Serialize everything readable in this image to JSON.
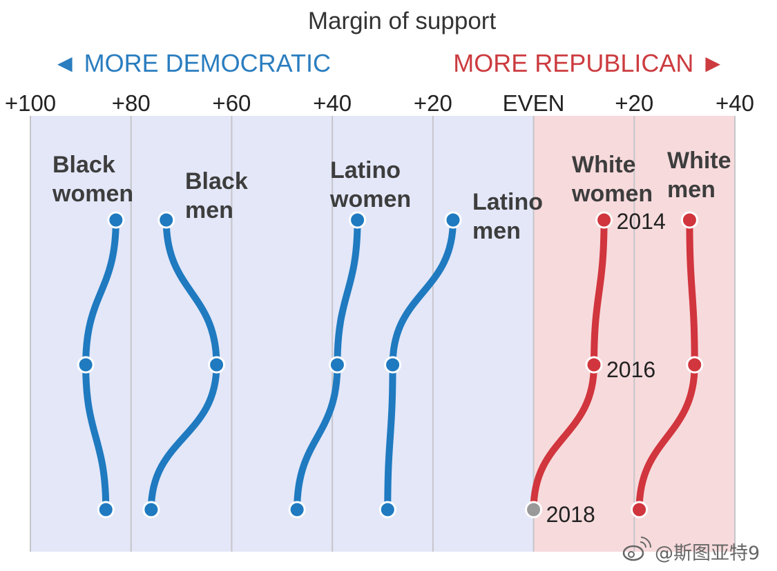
{
  "title": "Margin of support",
  "direction_labels": {
    "democratic": "◄ MORE DEMOCRATIC",
    "republican": "MORE REPUBLICAN ►"
  },
  "watermark": "@斯图亚特9",
  "colors": {
    "democratic_line": "#1f7ac0",
    "republican_line": "#d1353d",
    "democratic_bg": "#e3e7f8",
    "republican_bg": "#f7dadc",
    "grid": "#c5c5c9",
    "even_dot": "#999999"
  },
  "chart_data": {
    "type": "line",
    "title": "Margin of support",
    "xlabel": "",
    "ylabel": "",
    "x_unit": "signed margin of support (negative = Democratic, positive = Republican)",
    "xlim": [
      -100,
      40
    ],
    "x_ticks": [
      -100,
      -80,
      -60,
      -40,
      -20,
      0,
      20,
      40
    ],
    "x_tick_labels": [
      "+100",
      "+80",
      "+60",
      "+40",
      "+20",
      "EVEN",
      "+20",
      "+40"
    ],
    "y_categories": [
      "2014",
      "2016",
      "2018"
    ],
    "year_labels": [
      "2014",
      "2016",
      "2018"
    ],
    "grid": true,
    "series": [
      {
        "name": "Black women",
        "label_lines": [
          "Black",
          "women"
        ],
        "values": [
          -83,
          -89,
          -85
        ]
      },
      {
        "name": "Black men",
        "label_lines": [
          "Black",
          "men"
        ],
        "values": [
          -73,
          -63,
          -76
        ]
      },
      {
        "name": "Latino women",
        "label_lines": [
          "Latino",
          "women"
        ],
        "values": [
          -35,
          -39,
          -47
        ]
      },
      {
        "name": "Latino men",
        "label_lines": [
          "Latino",
          "men"
        ],
        "values": [
          -16,
          -28,
          -29
        ]
      },
      {
        "name": "White women",
        "label_lines": [
          "White",
          "women"
        ],
        "values": [
          14,
          12,
          0
        ]
      },
      {
        "name": "White men",
        "label_lines": [
          "White",
          "men"
        ],
        "values": [
          31,
          32,
          21
        ]
      }
    ]
  }
}
